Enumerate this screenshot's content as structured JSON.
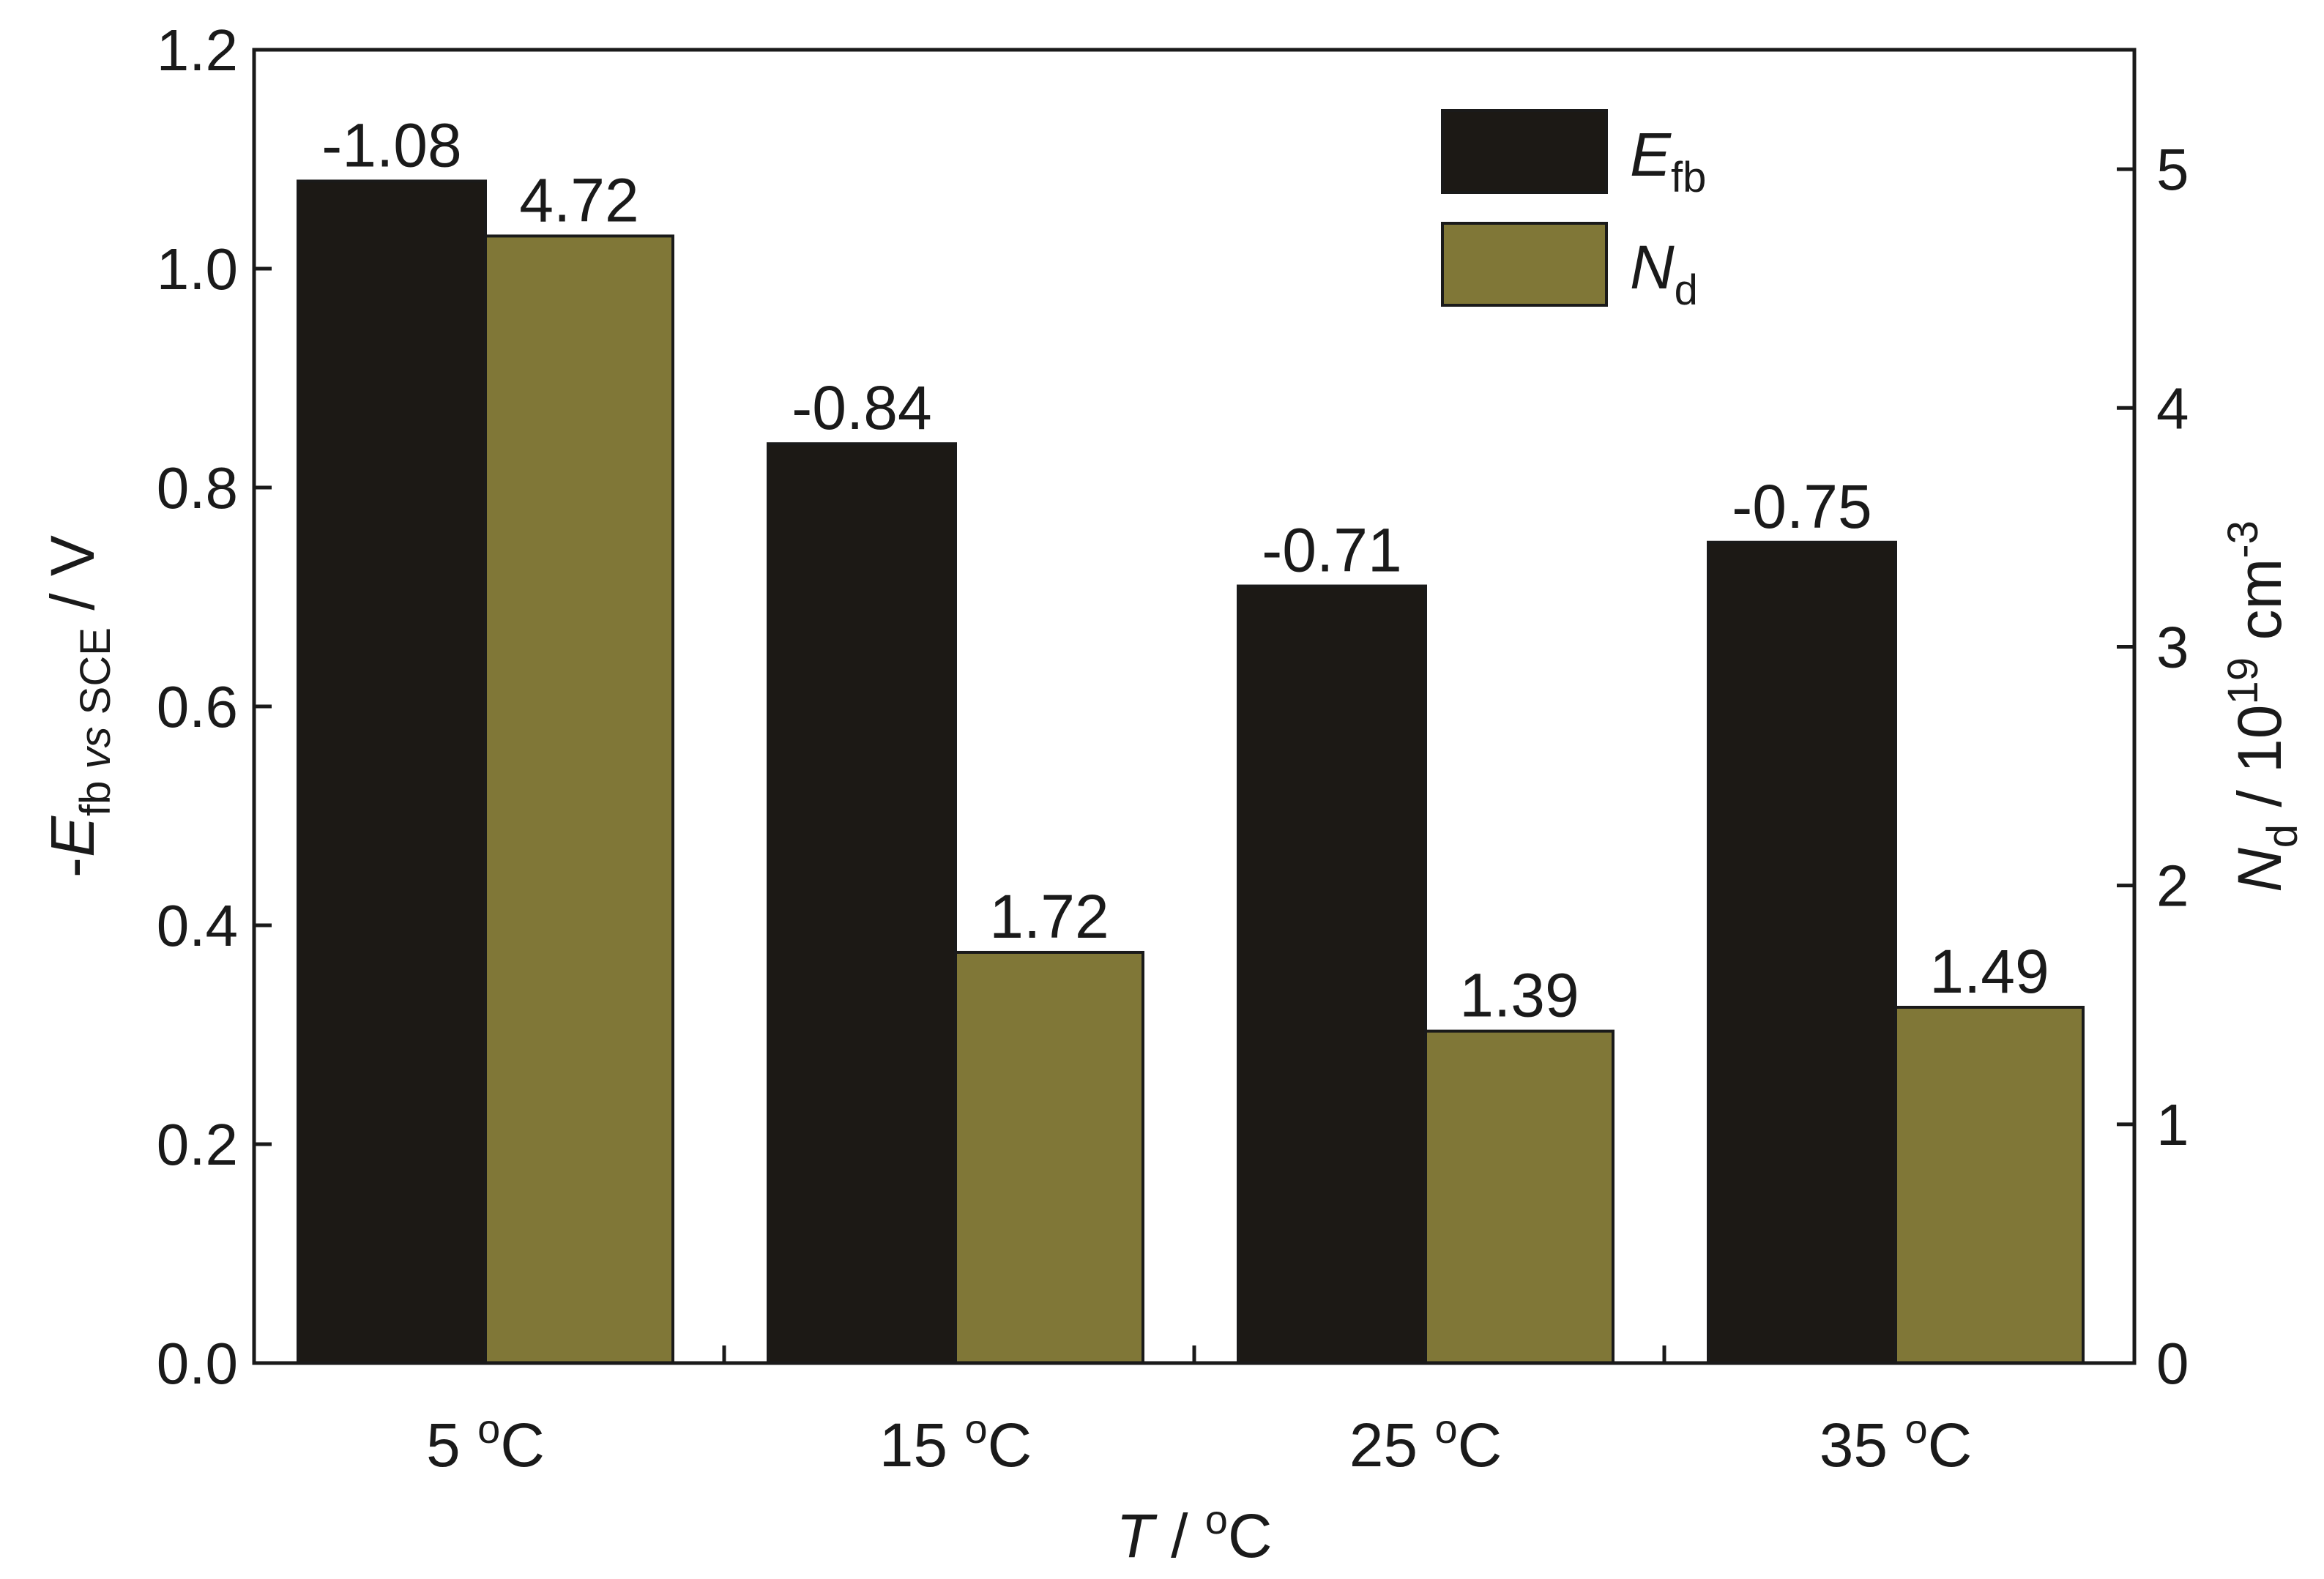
{
  "chart_data": {
    "type": "bar",
    "categories": [
      "5 °C",
      "15 °C",
      "25 °C",
      "35 °C"
    ],
    "category_display": [
      {
        "num": "5 ",
        "sup": "o",
        "unit": "C"
      },
      {
        "num": "15 ",
        "sup": "o",
        "unit": "C"
      },
      {
        "num": "25 ",
        "sup": "o",
        "unit": "C"
      },
      {
        "num": "35 ",
        "sup": "o",
        "unit": "C"
      }
    ],
    "series": [
      {
        "name": "E_fb",
        "axis": "left",
        "color": "#1c1915",
        "values": [
          1.08,
          0.84,
          0.71,
          0.75
        ],
        "labels": [
          "-1.08",
          "-0.84",
          "-0.71",
          "-0.75"
        ]
      },
      {
        "name": "N_d",
        "axis": "right",
        "color": "#807737",
        "values": [
          4.72,
          1.72,
          1.39,
          1.49
        ],
        "labels": [
          "4.72",
          "1.72",
          "1.39",
          "1.49"
        ]
      }
    ],
    "y_left": {
      "ylim": [
        0.0,
        1.2
      ],
      "ticks": [
        "0.0",
        "0.2",
        "0.4",
        "0.6",
        "0.8",
        "1.0",
        "1.2"
      ]
    },
    "y_right": {
      "ylim": [
        0,
        5.5
      ],
      "ticks": [
        "0",
        "1",
        "2",
        "3",
        "4",
        "5"
      ]
    },
    "xlabel": {
      "italic": "T",
      "rest": " / ",
      "sup": "o",
      "unit": "C"
    },
    "ylabel_left": {
      "prefix": "-",
      "italic": "E",
      "sub1": "fb ",
      "sub_italic": "vs",
      "sub2": " SCE",
      "suffix": " / V"
    },
    "ylabel_right": {
      "italic": "N",
      "sub": "d",
      "mid": " / 10",
      "sup": "19",
      "unit": " cm",
      "sup2": "-3"
    },
    "legend": {
      "position": "top-right",
      "entries": [
        {
          "italic": "E",
          "sub": "fb"
        },
        {
          "italic": "N",
          "sub": "d"
        }
      ]
    },
    "grid": false
  }
}
